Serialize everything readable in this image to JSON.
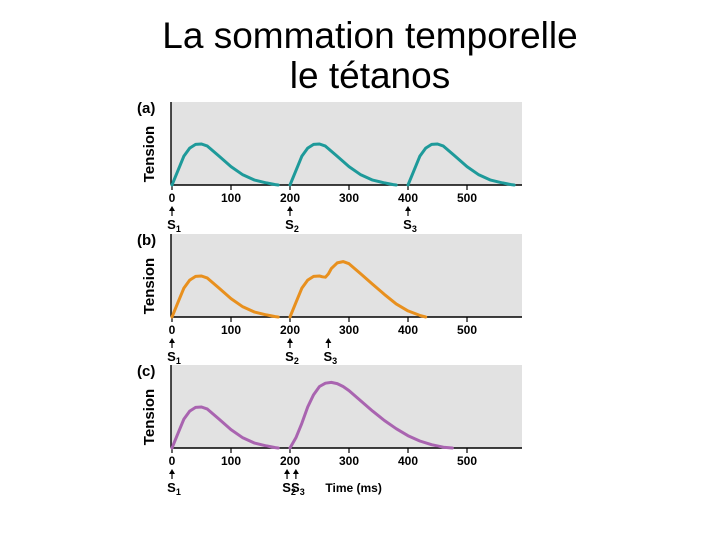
{
  "title": {
    "line1": "La sommation temporelle",
    "line2": "le tétanos"
  },
  "chart_data": [
    {
      "type": "line",
      "panel_label": "(a)",
      "ylabel": "Tension",
      "xlabel": "",
      "xlim": [
        0,
        590
      ],
      "xticks": [
        0,
        100,
        200,
        300,
        400,
        500
      ],
      "color": "#1e9a9a",
      "background": "#e2e2e2",
      "series": [
        {
          "x": [
            0,
            10,
            20,
            30,
            40,
            50,
            60,
            80,
            100,
            120,
            140,
            160,
            175,
            180
          ],
          "y": [
            0,
            0.35,
            0.7,
            0.9,
            0.99,
            1.0,
            0.95,
            0.7,
            0.45,
            0.25,
            0.12,
            0.05,
            0.01,
            0
          ]
        },
        {
          "x": [
            200,
            210,
            220,
            230,
            240,
            250,
            260,
            280,
            300,
            320,
            340,
            360,
            375,
            380
          ],
          "y": [
            0,
            0.35,
            0.7,
            0.9,
            0.99,
            1.0,
            0.95,
            0.7,
            0.45,
            0.25,
            0.12,
            0.05,
            0.01,
            0
          ]
        },
        {
          "x": [
            400,
            410,
            420,
            430,
            440,
            450,
            460,
            480,
            500,
            520,
            540,
            560,
            575,
            580
          ],
          "y": [
            0,
            0.35,
            0.7,
            0.9,
            0.99,
            1.0,
            0.95,
            0.7,
            0.45,
            0.25,
            0.12,
            0.05,
            0.01,
            0
          ]
        }
      ],
      "stimuli": [
        {
          "x": 0,
          "label": "S",
          "sub": "1"
        },
        {
          "x": 200,
          "label": "S",
          "sub": "2"
        },
        {
          "x": 400,
          "label": "S",
          "sub": "3"
        }
      ]
    },
    {
      "type": "line",
      "panel_label": "(b)",
      "ylabel": "Tension",
      "xlabel": "",
      "xlim": [
        0,
        590
      ],
      "xticks": [
        0,
        100,
        200,
        300,
        400,
        500
      ],
      "color": "#e8901e",
      "background": "#e2e2e2",
      "series": [
        {
          "x": [
            0,
            10,
            20,
            30,
            40,
            50,
            60,
            80,
            100,
            120,
            140,
            160,
            175,
            180
          ],
          "y": [
            0,
            0.35,
            0.7,
            0.9,
            0.99,
            1.0,
            0.95,
            0.7,
            0.45,
            0.25,
            0.12,
            0.05,
            0.01,
            0
          ]
        },
        {
          "x": [
            200,
            210,
            220,
            230,
            240,
            250,
            255,
            260,
            265,
            270,
            280,
            290,
            300,
            320,
            340,
            360,
            380,
            400,
            420,
            430
          ],
          "y": [
            0,
            0.35,
            0.7,
            0.9,
            0.99,
            1.0,
            0.98,
            0.97,
            1.05,
            1.18,
            1.32,
            1.35,
            1.3,
            1.05,
            0.8,
            0.55,
            0.32,
            0.15,
            0.04,
            0
          ]
        }
      ],
      "stimuli": [
        {
          "x": 0,
          "label": "S",
          "sub": "1"
        },
        {
          "x": 200,
          "label": "S",
          "sub": "2"
        },
        {
          "x": 265,
          "label": "S",
          "sub": "3"
        }
      ]
    },
    {
      "type": "line",
      "panel_label": "(c)",
      "ylabel": "Tension",
      "xlabel": "Time (ms)",
      "xlim": [
        0,
        590
      ],
      "xticks": [
        0,
        100,
        200,
        300,
        400,
        500
      ],
      "color": "#a964b0",
      "background": "#e2e2e2",
      "series": [
        {
          "x": [
            0,
            10,
            20,
            30,
            40,
            50,
            60,
            80,
            100,
            120,
            140,
            160,
            175,
            180
          ],
          "y": [
            0,
            0.35,
            0.7,
            0.9,
            0.99,
            1.0,
            0.95,
            0.7,
            0.45,
            0.25,
            0.12,
            0.05,
            0.01,
            0
          ]
        },
        {
          "x": [
            200,
            210,
            220,
            230,
            240,
            250,
            260,
            270,
            280,
            290,
            300,
            320,
            340,
            360,
            380,
            400,
            420,
            440,
            460,
            475
          ],
          "y": [
            0,
            0.25,
            0.6,
            1.0,
            1.3,
            1.5,
            1.58,
            1.6,
            1.57,
            1.5,
            1.4,
            1.15,
            0.9,
            0.67,
            0.47,
            0.3,
            0.17,
            0.08,
            0.02,
            0
          ]
        }
      ],
      "stimuli": [
        {
          "x": 0,
          "label": "S",
          "sub": "1"
        },
        {
          "x": 195,
          "label": "S",
          "sub": "2"
        },
        {
          "x": 210,
          "label": "S",
          "sub": "3"
        }
      ]
    }
  ]
}
